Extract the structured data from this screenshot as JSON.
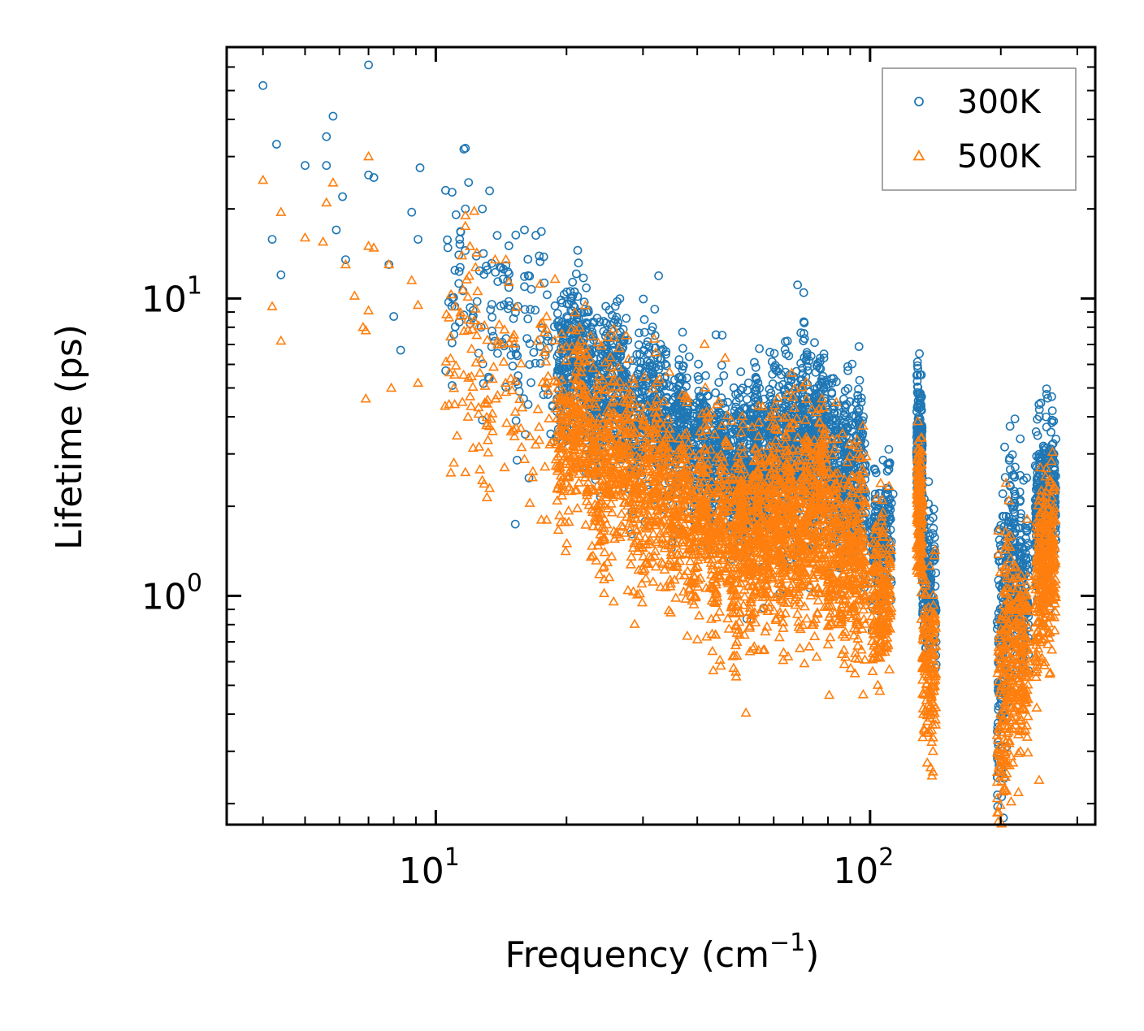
{
  "chart_data": {
    "type": "scatter",
    "title": "",
    "xlabel": "Frequency (cm",
    "xlabel_exp": "−1",
    "xlabel_close": ")",
    "ylabel": "Lifetime (ps)",
    "xscale": "log",
    "yscale": "log",
    "xlim": [
      3.3,
      330
    ],
    "ylim": [
      0.17,
      70
    ],
    "x_ticks": [
      {
        "value": 10,
        "base": "10",
        "exp": "1"
      },
      {
        "value": 100,
        "base": "10",
        "exp": "2"
      }
    ],
    "y_ticks": [
      {
        "value": 1,
        "base": "10",
        "exp": "0"
      },
      {
        "value": 10,
        "base": "10",
        "exp": "1"
      }
    ],
    "legend_position": "top-right",
    "series": [
      {
        "name": "300K",
        "marker": "circle",
        "color": "#1f77b4",
        "seed": 11,
        "anchor_points": [
          [
            4.0,
            52
          ],
          [
            4.3,
            33
          ],
          [
            5.0,
            28
          ],
          [
            5.6,
            35
          ],
          [
            5.8,
            41
          ],
          [
            5.6,
            28
          ],
          [
            6.1,
            22
          ],
          [
            7.0,
            61
          ],
          [
            7.0,
            26
          ],
          [
            7.2,
            25.5
          ],
          [
            9.2,
            27.5
          ],
          [
            11.7,
            32
          ],
          [
            11.7,
            20
          ],
          [
            12.8,
            20
          ],
          [
            13.3,
            23
          ],
          [
            4.2,
            15.8
          ],
          [
            4.4,
            12
          ],
          [
            5.9,
            17
          ],
          [
            6.2,
            13.5
          ],
          [
            8.8,
            19.5
          ],
          [
            16,
            17
          ],
          [
            17.5,
            16.8
          ],
          [
            9.1,
            15.8
          ],
          [
            7.8,
            13
          ],
          [
            8.3,
            6.7
          ],
          [
            8.0,
            8.7
          ],
          [
            11.3,
            14
          ],
          [
            12.8,
            3.9
          ],
          [
            44.5,
            4.35
          ],
          [
            52.5,
            5.2
          ],
          [
            62.5,
            4.2
          ],
          [
            29.5,
            6.5
          ],
          [
            113,
            2.2
          ],
          [
            112,
            2.05
          ]
        ],
        "segments": [
          {
            "x": [
              10.5,
              19
            ],
            "y": [
              11,
              6.5
            ],
            "n": 140,
            "spread": 0.16
          },
          {
            "x": [
              19,
              35
            ],
            "y": [
              6.5,
              3.6
            ],
            "n": 900,
            "spread": 0.13
          },
          {
            "x": [
              35,
              48
            ],
            "y": [
              3.6,
              2.7
            ],
            "n": 500,
            "spread": 0.12
          },
          {
            "x": [
              48,
              62
            ],
            "y": [
              2.7,
              3.1
            ],
            "n": 550,
            "spread": 0.14
          },
          {
            "x": [
              62,
              80
            ],
            "y": [
              3.1,
              3.6
            ],
            "n": 550,
            "spread": 0.15
          },
          {
            "x": [
              80,
              98
            ],
            "y": [
              2.7,
              2.5
            ],
            "n": 400,
            "spread": 0.15
          },
          {
            "x": [
              101,
              112
            ],
            "y": [
              1.5,
              1.6
            ],
            "n": 200,
            "spread": 0.1
          },
          {
            "x": [
              128,
              132
            ],
            "y": [
              3.6,
              2.8
            ],
            "n": 180,
            "spread": 0.12
          },
          {
            "x": [
              132,
              142
            ],
            "y": [
              1.2,
              0.95
            ],
            "n": 160,
            "spread": 0.12
          },
          {
            "x": [
              196,
              212
            ],
            "y": [
              0.5,
              1.5
            ],
            "n": 200,
            "spread": 0.22
          },
          {
            "x": [
              212,
              232
            ],
            "y": [
              1.3,
              1.1
            ],
            "n": 180,
            "spread": 0.15
          },
          {
            "x": [
              240,
              268
            ],
            "y": [
              1.8,
              2.2
            ],
            "n": 320,
            "spread": 0.12
          }
        ]
      },
      {
        "name": "500K",
        "marker": "triangle",
        "color": "#ff7f0e",
        "seed": 29,
        "anchor_points": [
          [
            4.0,
            25
          ],
          [
            4.4,
            19.5
          ],
          [
            5.6,
            21
          ],
          [
            5.8,
            24.5
          ],
          [
            7.0,
            30
          ],
          [
            4.2,
            9.4
          ],
          [
            4.4,
            7.2
          ],
          [
            5.0,
            16
          ],
          [
            5.5,
            15.5
          ],
          [
            6.2,
            13
          ],
          [
            6.5,
            10.2
          ],
          [
            6.8,
            8
          ],
          [
            7.0,
            15
          ],
          [
            7.2,
            14.8
          ],
          [
            6.9,
            7.8
          ],
          [
            7.0,
            9.1
          ],
          [
            6.9,
            4.6
          ],
          [
            7.9,
            5
          ],
          [
            7.8,
            13
          ],
          [
            9.1,
            5.2
          ],
          [
            8.8,
            11.5
          ],
          [
            9.1,
            9.5
          ],
          [
            11.7,
            19
          ],
          [
            11.7,
            17.5
          ],
          [
            11.0,
            2.8
          ],
          [
            11.7,
            2.6
          ],
          [
            13.3,
            2.3
          ],
          [
            14.4,
            2.7
          ],
          [
            18.0,
            1.8
          ],
          [
            17.5,
            1.8
          ],
          [
            14.5,
            13.5
          ],
          [
            28.5,
            1.45
          ],
          [
            37,
            2.4
          ],
          [
            40.5,
            2.4
          ],
          [
            110,
            0.68
          ],
          [
            106.5,
            0.65
          ],
          [
            242,
            0.42
          ],
          [
            245,
            0.24
          ],
          [
            222,
            0.3
          ],
          [
            212,
            0.52
          ]
        ],
        "segments": [
          {
            "x": [
              10.5,
              19
            ],
            "y": [
              7,
              4.2
            ],
            "n": 140,
            "spread": 0.18
          },
          {
            "x": [
              19,
              35
            ],
            "y": [
              3.9,
              2.0
            ],
            "n": 900,
            "spread": 0.16
          },
          {
            "x": [
              35,
              48
            ],
            "y": [
              2.0,
              1.6
            ],
            "n": 500,
            "spread": 0.15
          },
          {
            "x": [
              48,
              62
            ],
            "y": [
              1.5,
              1.7
            ],
            "n": 550,
            "spread": 0.16
          },
          {
            "x": [
              62,
              80
            ],
            "y": [
              1.7,
              1.9
            ],
            "n": 550,
            "spread": 0.17
          },
          {
            "x": [
              80,
              98
            ],
            "y": [
              1.45,
              1.35
            ],
            "n": 400,
            "spread": 0.16
          },
          {
            "x": [
              101,
              112
            ],
            "y": [
              0.95,
              1.0
            ],
            "n": 200,
            "spread": 0.12
          },
          {
            "x": [
              128,
              132
            ],
            "y": [
              2.2,
              1.7
            ],
            "n": 180,
            "spread": 0.12
          },
          {
            "x": [
              132,
              142
            ],
            "y": [
              0.65,
              0.55
            ],
            "n": 160,
            "spread": 0.14
          },
          {
            "x": [
              196,
              212
            ],
            "y": [
              0.3,
              0.75
            ],
            "n": 200,
            "spread": 0.25
          },
          {
            "x": [
              212,
              232
            ],
            "y": [
              0.7,
              0.6
            ],
            "n": 180,
            "spread": 0.16
          },
          {
            "x": [
              240,
              268
            ],
            "y": [
              1.1,
              1.3
            ],
            "n": 320,
            "spread": 0.14
          }
        ]
      }
    ]
  }
}
